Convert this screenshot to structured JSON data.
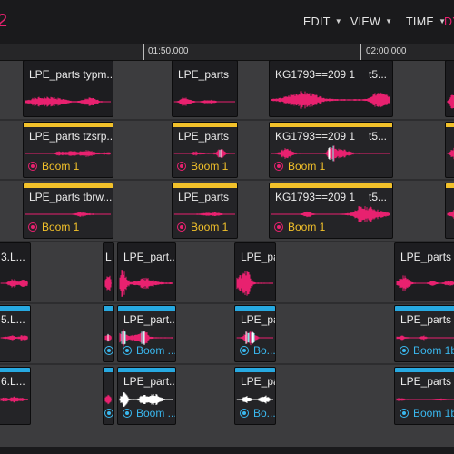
{
  "app": {
    "title_fragment": "2"
  },
  "menu": {
    "edit": "EDIT",
    "view": "VIEW",
    "time": "TIME",
    "dyn": "DY"
  },
  "ruler": {
    "ticks": [
      "01:50.000",
      "02:00.000"
    ]
  },
  "colors": {
    "accent_pink": "#e8216f",
    "stripe_yellow": "#f2c12a",
    "stripe_blue": "#27a9e1",
    "text_cyan": "#3ab8ef"
  },
  "clips": {
    "r1c1": {
      "name": "LPE_parts typm..."
    },
    "r1c2": {
      "name": "LPE_parts"
    },
    "r1c3": {
      "name": "KG1793==209 1",
      "tc": "t5..."
    },
    "r2c1": {
      "name": "LPE_parts tzsrp...",
      "footer": "Boom 1"
    },
    "r2c2": {
      "name": "LPE_parts",
      "footer": "Boom 1"
    },
    "r2c3": {
      "name": "KG1793==209 1",
      "tc": "t5...",
      "footer": "Boom 1"
    },
    "r3c1": {
      "name": "LPE_parts tbrw...",
      "footer": "Boom 1"
    },
    "r3c2": {
      "name": "LPE_parts",
      "footer": "Boom 1"
    },
    "r3c3": {
      "name": "KG1793==209 1",
      "tc": "t5...",
      "footer": "Boom 1"
    },
    "r4c1": {
      "name": "3.L..."
    },
    "r4c2": {
      "name": "L"
    },
    "r4c3": {
      "name": "LPE_part..."
    },
    "r4c4": {
      "name": "LPE_parts..."
    },
    "r4c5": {
      "name": "LPE_parts"
    },
    "r5c1": {
      "name": "5.L..."
    },
    "r5c3": {
      "name": "LPE_part...",
      "footer": "Boom ..."
    },
    "r5c4": {
      "name": "LPE_parts...",
      "footer": "Bo..."
    },
    "r5c5": {
      "name": "LPE_parts",
      "footer": "Boom 1b"
    },
    "r6c1": {
      "name": "6.L..."
    },
    "r6c3": {
      "name": "LPE_part...",
      "footer": "Boom ..."
    },
    "r6c4": {
      "name": "LPE_parts...",
      "footer": "Bo..."
    },
    "r6c5": {
      "name": "LPE_parts",
      "footer": "Boom 1b"
    }
  }
}
